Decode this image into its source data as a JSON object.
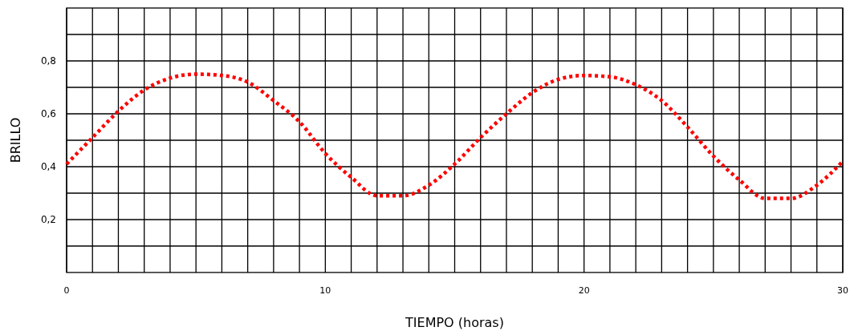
{
  "chart_data": {
    "type": "line",
    "xlabel": "TIEMPO (horas)",
    "ylabel": "BRILLO",
    "x": [
      0,
      1,
      2,
      3,
      4,
      5,
      6,
      7,
      8,
      9,
      10,
      11,
      12,
      13,
      14,
      15,
      16,
      17,
      18,
      19,
      20,
      21,
      22,
      23,
      24,
      25,
      26,
      27,
      28,
      29,
      30
    ],
    "series": [
      {
        "color": "#ff0000",
        "values": [
          0.41,
          0.51,
          0.61,
          0.69,
          0.735,
          0.75,
          0.745,
          0.72,
          0.65,
          0.57,
          0.45,
          0.36,
          0.29,
          0.29,
          0.33,
          0.41,
          0.51,
          0.6,
          0.68,
          0.73,
          0.745,
          0.74,
          0.71,
          0.65,
          0.55,
          0.44,
          0.35,
          0.28,
          0.28,
          0.33,
          0.42
        ]
      }
    ],
    "xlim": [
      0,
      30
    ],
    "xticks": [
      0,
      {
        "value": 1,
        "label": null
      },
      {
        "value": 2,
        "label": null
      },
      {
        "value": 3,
        "label": null
      },
      {
        "value": 4,
        "label": null
      },
      {
        "value": 5,
        "label": null
      },
      {
        "value": 6,
        "label": null
      },
      {
        "value": 7,
        "label": null
      },
      {
        "value": 8,
        "label": null
      },
      {
        "value": 9,
        "label": null
      },
      10,
      {
        "value": 11,
        "label": null
      },
      {
        "value": 12,
        "label": null
      },
      {
        "value": 13,
        "label": null
      },
      {
        "value": 14,
        "label": null
      },
      {
        "value": 15,
        "label": null
      },
      {
        "value": 16,
        "label": null
      },
      {
        "value": 17,
        "label": null
      },
      {
        "value": 18,
        "label": null
      },
      {
        "value": 19,
        "label": null
      },
      20,
      {
        "value": 21,
        "label": null
      },
      {
        "value": 22,
        "label": null
      },
      {
        "value": 23,
        "label": null
      },
      {
        "value": 24,
        "label": null
      },
      {
        "value": 25,
        "label": null
      },
      {
        "value": 26,
        "label": null
      },
      {
        "value": 27,
        "label": null
      },
      {
        "value": 28,
        "label": null
      },
      {
        "value": 29,
        "label": null
      },
      30
    ],
    "ylim": [
      0,
      1
    ],
    "yticks": [
      {
        "value": 0.1,
        "label": null
      },
      {
        "value": 0.2,
        "label": "0,2"
      },
      {
        "value": 0.3,
        "label": null
      },
      {
        "value": 0.4,
        "label": "0,4"
      },
      {
        "value": 0.5,
        "label": null
      },
      {
        "value": 0.6,
        "label": "0,6"
      },
      {
        "value": 0.7,
        "label": null
      },
      {
        "value": 0.8,
        "label": "0,8"
      },
      {
        "value": 0.9,
        "label": null
      }
    ],
    "grid": true,
    "marker": "none",
    "line_style": "dotted"
  }
}
